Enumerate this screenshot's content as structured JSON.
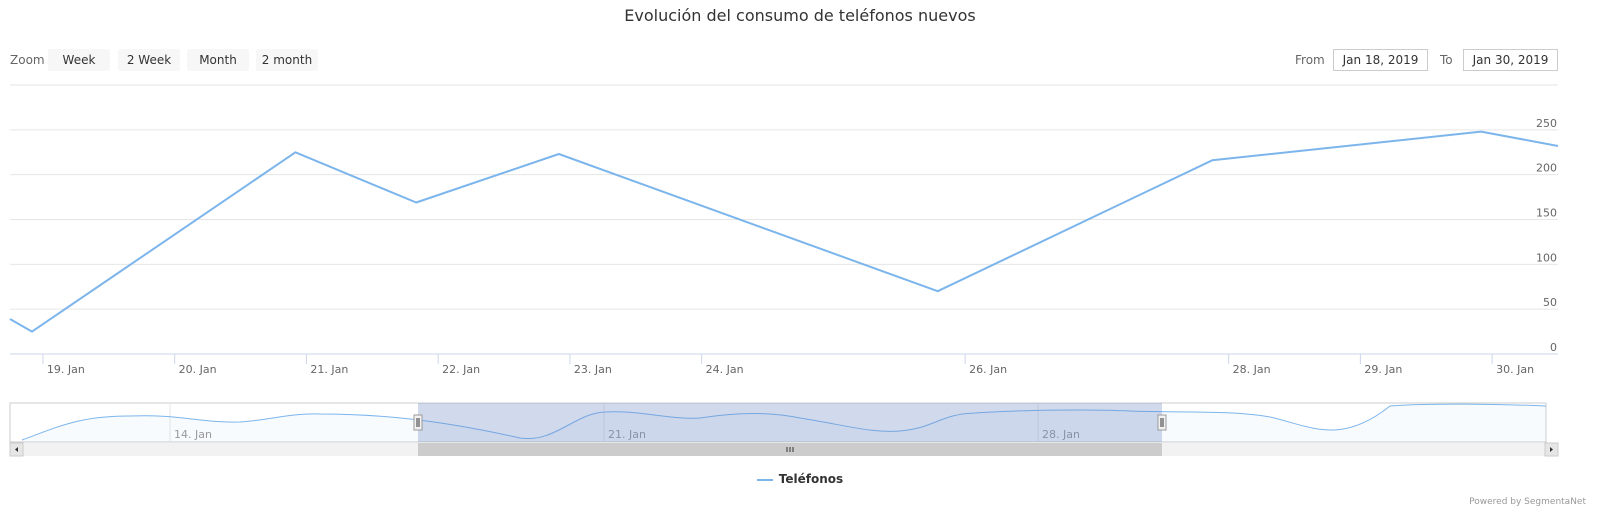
{
  "title": "Evolución del consumo de teléfonos nuevos",
  "range_selector": {
    "zoom_label": "Zoom",
    "buttons": [
      "Week",
      "2 Week",
      "Month",
      "2 month"
    ],
    "from_label": "From",
    "from_value": "Jan 18, 2019",
    "to_label": "To",
    "to_value": "Jan 30, 2019"
  },
  "legend": {
    "series_name": "Teléfonos"
  },
  "credits": "Powered by SegmentaNet",
  "colors": {
    "series": "#7cb5ec",
    "grid": "#e6e6e6",
    "axis": "#ccd6eb",
    "navigator_mask": "rgba(102,133,194,0.3)",
    "scrollbar_thumb": "#cccccc",
    "scrollbar_track": "#f2f2f2"
  },
  "chart_data": {
    "type": "line",
    "series": [
      {
        "name": "Teléfonos",
        "points": [
          {
            "x": "2019-01-18 18:00",
            "y": 39
          },
          {
            "x": "2019-01-18 22:00",
            "y": 25
          },
          {
            "x": "2019-01-20 22:00",
            "y": 225
          },
          {
            "x": "2019-01-21 20:00",
            "y": 169
          },
          {
            "x": "2019-01-22 22:00",
            "y": 223
          },
          {
            "x": "2019-01-25 19:00",
            "y": 70
          },
          {
            "x": "2019-01-27 21:00",
            "y": 216
          },
          {
            "x": "2019-01-29 22:00",
            "y": 248
          },
          {
            "x": "2019-01-30 12:00",
            "y": 232
          }
        ]
      }
    ],
    "xaxis": {
      "tick_labels": [
        "19. Jan",
        "20. Jan",
        "21. Jan",
        "22. Jan",
        "23. Jan",
        "24. Jan",
        "26. Jan",
        "28. Jan",
        "29. Jan",
        "30. Jan"
      ],
      "tick_dates": [
        "2019-01-19",
        "2019-01-20",
        "2019-01-21",
        "2019-01-22",
        "2019-01-23",
        "2019-01-24",
        "2019-01-26",
        "2019-01-28",
        "2019-01-29",
        "2019-01-30"
      ]
    },
    "yaxis": {
      "ticks": [
        0,
        50,
        100,
        150,
        200,
        250
      ],
      "ylim": [
        0,
        300
      ],
      "side": "right"
    },
    "grid": true,
    "navigator": {
      "tick_labels": [
        "14. Jan",
        "21. Jan",
        "28. Jan"
      ],
      "selected_range": [
        "2019-01-18",
        "2019-01-30"
      ]
    }
  }
}
